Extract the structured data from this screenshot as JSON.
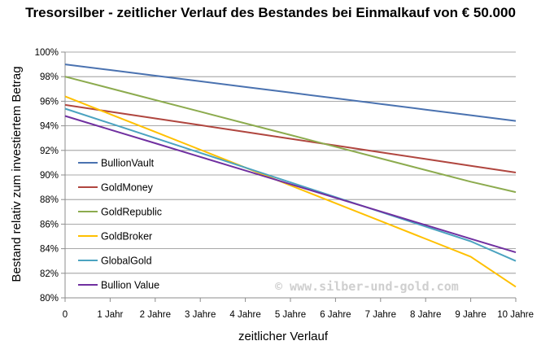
{
  "chart_data": {
    "type": "line",
    "title": "Tresorsilber - zeitlicher Verlauf des Bestandes bei Einmalkauf von € 50.000",
    "xlabel": "zeitlicher Verlauf",
    "ylabel": "Bestand relativ zum investiertem Betrag",
    "x": [
      0,
      1,
      2,
      3,
      4,
      5,
      6,
      7,
      8,
      9,
      10
    ],
    "x_tick_labels": [
      "0",
      "1 Jahr",
      "2 Jahre",
      "3 Jahre",
      "4 Jahre",
      "5 Jahre",
      "6 Jahre",
      "7 Jahre",
      "8 Jahre",
      "9 Jahre",
      "10 Jahre"
    ],
    "ylim": [
      80,
      100
    ],
    "y_ticks": [
      80,
      82,
      84,
      86,
      88,
      90,
      92,
      94,
      96,
      98,
      100
    ],
    "y_tick_labels": [
      "80%",
      "82%",
      "84%",
      "86%",
      "88%",
      "90%",
      "92%",
      "94%",
      "96%",
      "98%",
      "100%"
    ],
    "grid": true,
    "legend_position": "left",
    "series": [
      {
        "name": "BullionVault",
        "color": "#4a72b0",
        "values": [
          99.0,
          98.54,
          98.08,
          97.62,
          97.16,
          96.7,
          96.24,
          95.78,
          95.32,
          94.86,
          94.4
        ]
      },
      {
        "name": "GoldMoney",
        "color": "#b0463f",
        "values": [
          95.7,
          95.15,
          94.6,
          94.05,
          93.5,
          92.95,
          92.4,
          91.85,
          91.3,
          90.75,
          90.2
        ]
      },
      {
        "name": "GoldRepublic",
        "color": "#8cab4e",
        "values": [
          98.0,
          97.05,
          96.1,
          95.15,
          94.2,
          93.25,
          92.3,
          91.35,
          90.4,
          89.45,
          88.6
        ]
      },
      {
        "name": "GoldBroker",
        "color": "#ffc000",
        "values": [
          96.4,
          94.95,
          93.5,
          92.05,
          90.6,
          89.15,
          87.7,
          86.25,
          84.8,
          83.35,
          80.9
        ]
      },
      {
        "name": "GlobalGold",
        "color": "#4ba3c0",
        "values": [
          95.4,
          94.2,
          93.0,
          91.8,
          90.6,
          89.4,
          88.2,
          87.0,
          85.8,
          84.6,
          83.0
        ]
      },
      {
        "name": "Bullion Value",
        "color": "#7030a0",
        "values": [
          94.8,
          93.69,
          92.58,
          91.47,
          90.36,
          89.25,
          88.14,
          87.03,
          85.92,
          84.81,
          83.7
        ]
      }
    ]
  },
  "watermark": "© www.silber-und-gold.com"
}
